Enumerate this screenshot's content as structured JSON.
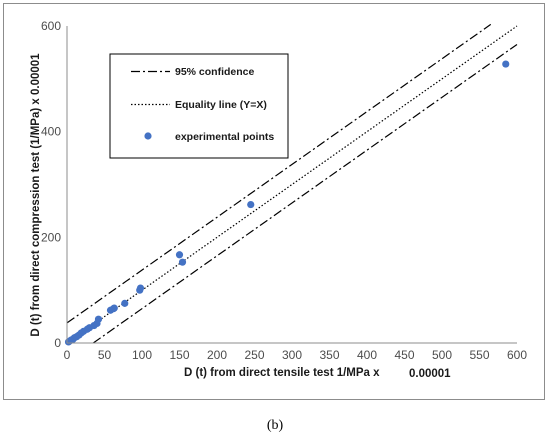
{
  "caption": "(b)",
  "chart_data": {
    "type": "scatter",
    "xlabel_main": "D (t) from direct tensile test 1/MPa  x",
    "xlabel_scale": "0.00001",
    "ylabel": "D (t) from direct compression test (1/MPa)  x  0.00001",
    "xlim": [
      0,
      600
    ],
    "ylim": [
      0,
      600
    ],
    "x_ticks": [
      0,
      50,
      100,
      150,
      200,
      250,
      300,
      350,
      400,
      450,
      500,
      550,
      600
    ],
    "y_ticks": [
      0,
      200,
      400,
      600
    ],
    "grid": false,
    "legend_position": "top-left",
    "legend": [
      {
        "label": "95% confidence",
        "style": "dash-dot"
      },
      {
        "label": "Equality line (Y=X)",
        "style": "dotted"
      },
      {
        "label": "experimental points",
        "style": "marker"
      }
    ],
    "series": [
      {
        "name": "95% confidence",
        "kind": "line",
        "style": "dash-dot",
        "color": "#000000",
        "x": [
          0,
          565
        ],
        "y": [
          38,
          603
        ]
      },
      {
        "name": "95% confidence",
        "kind": "line",
        "style": "dash-dot",
        "color": "#000000",
        "x": [
          35,
          600
        ],
        "y": [
          0,
          565
        ]
      },
      {
        "name": "Equality line (Y=X)",
        "kind": "line",
        "style": "dotted",
        "color": "#000000",
        "x": [
          0,
          600
        ],
        "y": [
          0,
          600
        ]
      },
      {
        "name": "experimental points",
        "kind": "scatter",
        "color": "#4472c4",
        "x": [
          2,
          4,
          6,
          8,
          10,
          13,
          16,
          19,
          22,
          27,
          30,
          36,
          40,
          42,
          58,
          62,
          63,
          77,
          97,
          98,
          150,
          154,
          245,
          585
        ],
        "y": [
          2,
          4,
          6,
          7,
          10,
          12,
          15,
          19,
          22,
          26,
          29,
          33,
          37,
          45,
          62,
          65,
          66,
          75,
          100,
          104,
          167,
          153,
          262,
          528
        ]
      }
    ]
  }
}
